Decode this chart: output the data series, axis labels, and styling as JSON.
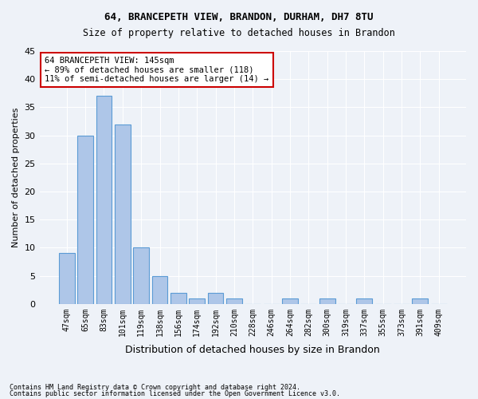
{
  "title1": "64, BRANCEPETH VIEW, BRANDON, DURHAM, DH7 8TU",
  "title2": "Size of property relative to detached houses in Brandon",
  "xlabel": "Distribution of detached houses by size in Brandon",
  "ylabel": "Number of detached properties",
  "categories": [
    "47sqm",
    "65sqm",
    "83sqm",
    "101sqm",
    "119sqm",
    "138sqm",
    "156sqm",
    "174sqm",
    "192sqm",
    "210sqm",
    "228sqm",
    "246sqm",
    "264sqm",
    "282sqm",
    "300sqm",
    "319sqm",
    "337sqm",
    "355sqm",
    "373sqm",
    "391sqm",
    "409sqm"
  ],
  "values": [
    9,
    30,
    37,
    32,
    10,
    5,
    2,
    1,
    2,
    1,
    0,
    0,
    1,
    0,
    1,
    0,
    1,
    0,
    0,
    1,
    0
  ],
  "bar_color": "#aec6e8",
  "bar_edge_color": "#5b9bd5",
  "highlight_index": 4,
  "highlight_color": "#aec6e8",
  "annotation_text": "64 BRANCEPETH VIEW: 145sqm\n← 89% of detached houses are smaller (118)\n11% of semi-detached houses are larger (14) →",
  "annotation_box_color": "#ffffff",
  "annotation_box_edge_color": "#cc0000",
  "ylim": [
    0,
    45
  ],
  "yticks": [
    0,
    5,
    10,
    15,
    20,
    25,
    30,
    35,
    40,
    45
  ],
  "bg_color": "#eef2f8",
  "plot_bg_color": "#eef2f8",
  "grid_color": "#ffffff",
  "footnote1": "Contains HM Land Registry data © Crown copyright and database right 2024.",
  "footnote2": "Contains public sector information licensed under the Open Government Licence v3.0."
}
